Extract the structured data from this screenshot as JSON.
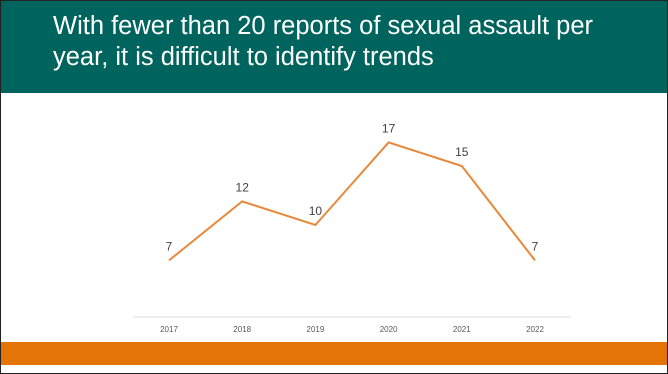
{
  "slide": {
    "title": "With fewer than 20 reports of sexual assault per year, it is difficult to identify trends",
    "header_color": "#00645e",
    "footer_color": "#e57406"
  },
  "chart_data": {
    "type": "line",
    "title": "",
    "xlabel": "",
    "ylabel": "",
    "categories": [
      "2017",
      "2018",
      "2019",
      "2020",
      "2021",
      "2022"
    ],
    "series": [
      {
        "values": [
          7,
          12,
          10,
          17,
          15,
          7
        ],
        "color": "#e8893a"
      }
    ],
    "data_labels": true,
    "ylim": [
      0,
      20
    ],
    "grid": false,
    "legend": "none"
  }
}
